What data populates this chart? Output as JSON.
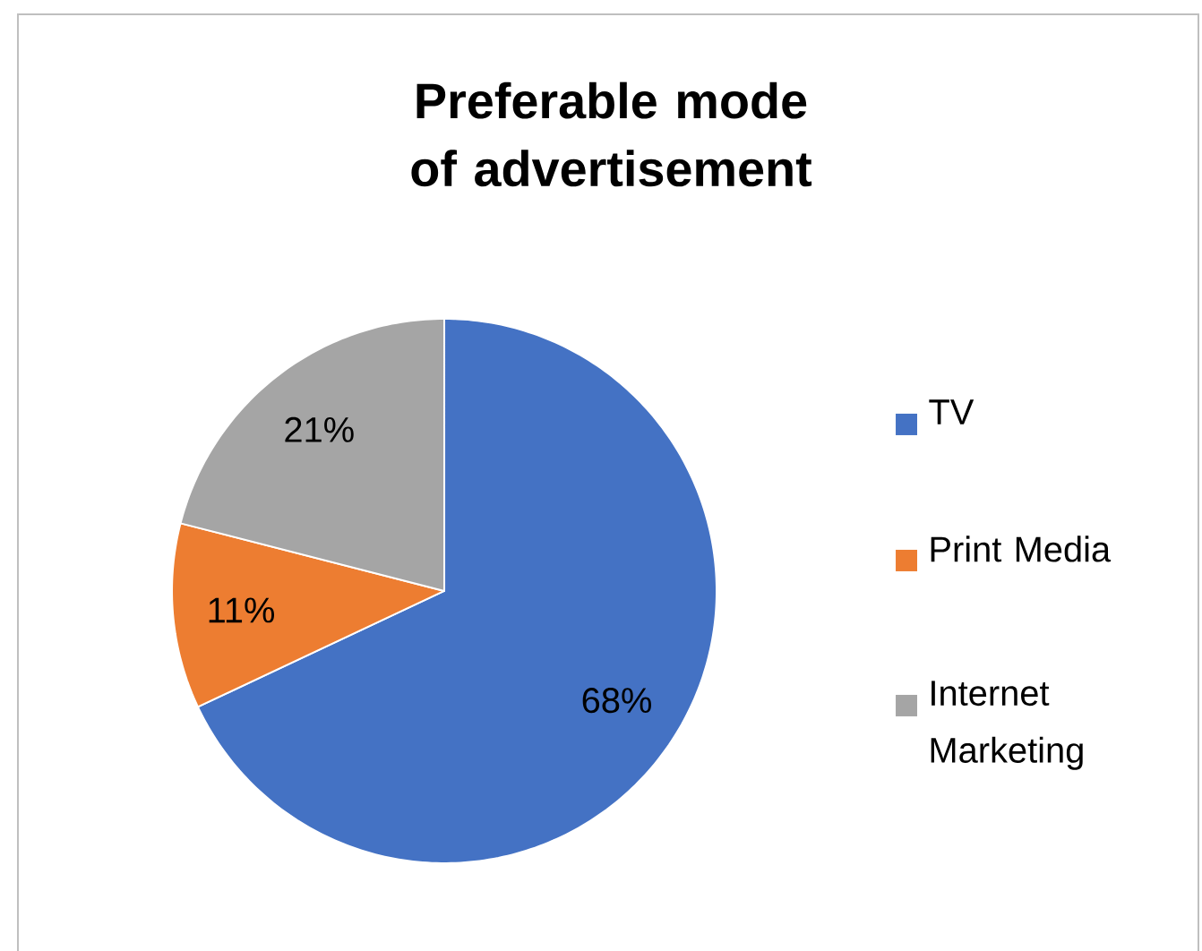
{
  "chart_data": {
    "type": "pie",
    "title": "Preferable mode of advertisement",
    "categories": [
      "TV",
      "Print Media",
      "Internet Marketing"
    ],
    "values": [
      68,
      11,
      21
    ],
    "colors": [
      "#4472c4",
      "#ed7d31",
      "#a5a5a5"
    ],
    "value_labels": [
      "68%",
      "11%",
      "21%"
    ],
    "legend": "right"
  }
}
